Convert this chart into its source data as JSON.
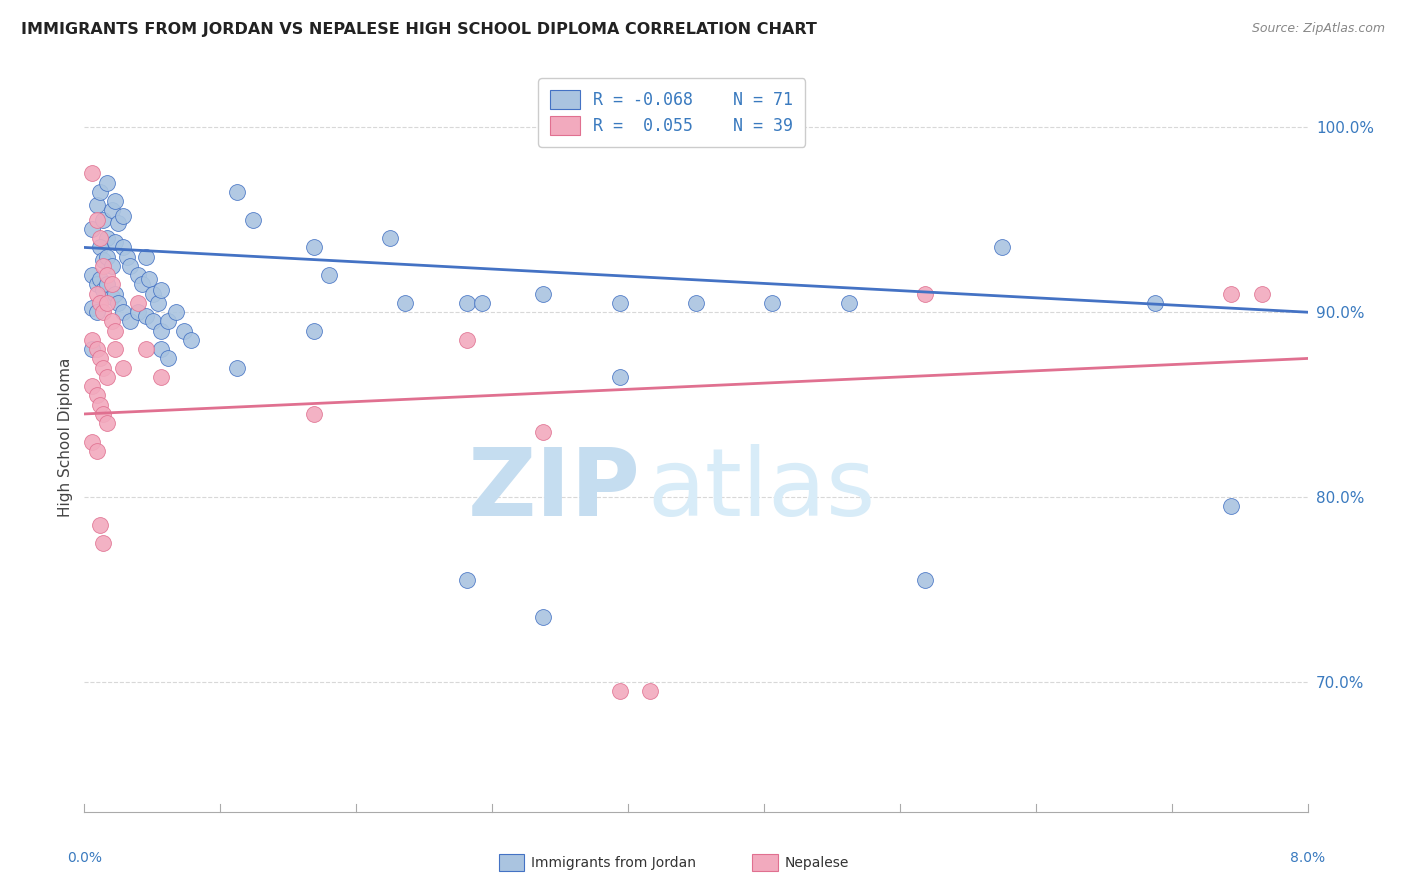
{
  "title": "IMMIGRANTS FROM JORDAN VS NEPALESE HIGH SCHOOL DIPLOMA CORRELATION CHART",
  "source": "Source: ZipAtlas.com",
  "ylabel": "High School Diploma",
  "xlim": [
    0.0,
    8.0
  ],
  "ylim": [
    63.0,
    103.5
  ],
  "yticks": [
    70.0,
    80.0,
    90.0,
    100.0
  ],
  "ytick_labels": [
    "70.0%",
    "80.0%",
    "90.0%",
    "100.0%"
  ],
  "blue_color": "#aac4e0",
  "pink_color": "#f2aabe",
  "blue_line_color": "#4472c4",
  "pink_line_color": "#e07090",
  "blue_scatter": [
    [
      0.05,
      94.5
    ],
    [
      0.08,
      95.8
    ],
    [
      0.1,
      96.5
    ],
    [
      0.12,
      95.0
    ],
    [
      0.15,
      97.0
    ],
    [
      0.15,
      94.0
    ],
    [
      0.18,
      95.5
    ],
    [
      0.2,
      96.0
    ],
    [
      0.22,
      94.8
    ],
    [
      0.25,
      95.2
    ],
    [
      0.1,
      93.5
    ],
    [
      0.12,
      92.8
    ],
    [
      0.15,
      93.0
    ],
    [
      0.18,
      92.5
    ],
    [
      0.2,
      93.8
    ],
    [
      0.05,
      92.0
    ],
    [
      0.08,
      91.5
    ],
    [
      0.1,
      91.8
    ],
    [
      0.12,
      91.2
    ],
    [
      0.15,
      91.5
    ],
    [
      0.18,
      90.8
    ],
    [
      0.2,
      91.0
    ],
    [
      0.22,
      90.5
    ],
    [
      0.05,
      90.2
    ],
    [
      0.08,
      90.0
    ],
    [
      0.25,
      93.5
    ],
    [
      0.28,
      93.0
    ],
    [
      0.3,
      92.5
    ],
    [
      0.35,
      92.0
    ],
    [
      0.38,
      91.5
    ],
    [
      0.4,
      93.0
    ],
    [
      0.42,
      91.8
    ],
    [
      0.45,
      91.0
    ],
    [
      0.48,
      90.5
    ],
    [
      0.5,
      91.2
    ],
    [
      0.25,
      90.0
    ],
    [
      0.3,
      89.5
    ],
    [
      0.35,
      90.0
    ],
    [
      0.4,
      89.8
    ],
    [
      0.45,
      89.5
    ],
    [
      0.5,
      89.0
    ],
    [
      0.55,
      89.5
    ],
    [
      0.6,
      90.0
    ],
    [
      0.65,
      89.0
    ],
    [
      0.7,
      88.5
    ],
    [
      0.5,
      88.0
    ],
    [
      0.55,
      87.5
    ],
    [
      0.05,
      88.0
    ],
    [
      1.0,
      96.5
    ],
    [
      1.1,
      95.0
    ],
    [
      1.5,
      93.5
    ],
    [
      1.6,
      92.0
    ],
    [
      2.0,
      94.0
    ],
    [
      2.1,
      90.5
    ],
    [
      2.5,
      90.5
    ],
    [
      2.6,
      90.5
    ],
    [
      3.0,
      91.0
    ],
    [
      3.5,
      90.5
    ],
    [
      4.0,
      90.5
    ],
    [
      4.5,
      90.5
    ],
    [
      3.5,
      86.5
    ],
    [
      5.0,
      90.5
    ],
    [
      5.5,
      75.5
    ],
    [
      6.0,
      93.5
    ],
    [
      7.0,
      90.5
    ],
    [
      7.5,
      79.5
    ],
    [
      2.5,
      75.5
    ],
    [
      3.0,
      73.5
    ],
    [
      1.5,
      89.0
    ],
    [
      1.0,
      87.0
    ]
  ],
  "pink_scatter": [
    [
      0.05,
      97.5
    ],
    [
      0.08,
      95.0
    ],
    [
      0.1,
      94.0
    ],
    [
      0.12,
      92.5
    ],
    [
      0.15,
      92.0
    ],
    [
      0.18,
      91.5
    ],
    [
      0.08,
      91.0
    ],
    [
      0.1,
      90.5
    ],
    [
      0.12,
      90.0
    ],
    [
      0.15,
      90.5
    ],
    [
      0.18,
      89.5
    ],
    [
      0.2,
      89.0
    ],
    [
      0.05,
      88.5
    ],
    [
      0.08,
      88.0
    ],
    [
      0.1,
      87.5
    ],
    [
      0.12,
      87.0
    ],
    [
      0.15,
      86.5
    ],
    [
      0.05,
      86.0
    ],
    [
      0.08,
      85.5
    ],
    [
      0.1,
      85.0
    ],
    [
      0.12,
      84.5
    ],
    [
      0.15,
      84.0
    ],
    [
      0.05,
      83.0
    ],
    [
      0.08,
      82.5
    ],
    [
      0.1,
      78.5
    ],
    [
      0.12,
      77.5
    ],
    [
      0.2,
      88.0
    ],
    [
      0.25,
      87.0
    ],
    [
      0.35,
      90.5
    ],
    [
      0.4,
      88.0
    ],
    [
      0.5,
      86.5
    ],
    [
      1.5,
      84.5
    ],
    [
      2.5,
      88.5
    ],
    [
      3.0,
      83.5
    ],
    [
      3.5,
      69.5
    ],
    [
      3.7,
      69.5
    ],
    [
      5.5,
      91.0
    ],
    [
      7.5,
      91.0
    ],
    [
      7.7,
      91.0
    ]
  ],
  "blue_trendline": [
    0.0,
    8.0,
    93.5,
    90.0
  ],
  "pink_trendline": [
    0.0,
    8.0,
    84.5,
    87.5
  ],
  "watermark_zip": "ZIP",
  "watermark_atlas": "atlas",
  "background_color": "#ffffff",
  "grid_color": "#d8d8d8"
}
